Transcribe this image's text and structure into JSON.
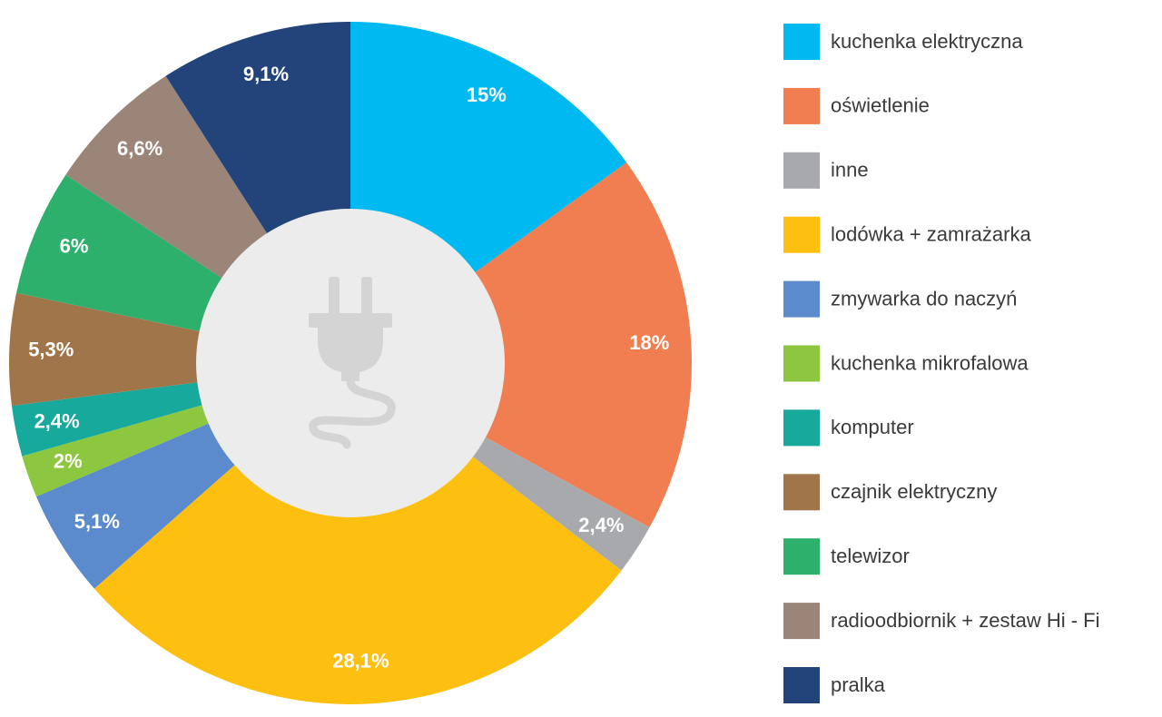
{
  "chart_data": {
    "type": "donut",
    "categories": [
      "kuchenka elektryczna",
      "oświetlenie",
      "inne",
      "lodówka + zamrażarka",
      "zmywarka do naczyń",
      "kuchenka mikrofalowa",
      "komputer",
      "czajnik elektryczny",
      "telewizor",
      "radioodbiornik + zestaw Hi - Fi",
      "pralka"
    ],
    "values": [
      15,
      18,
      2.4,
      28.1,
      5.1,
      2,
      2.4,
      5.3,
      6,
      6.6,
      9.1
    ],
    "value_labels": [
      "15%",
      "18%",
      "2,4%",
      "28,1%",
      "5,1%",
      "2%",
      "2,4%",
      "5,3%",
      "6%",
      "6,6%",
      "9,1%"
    ],
    "colors": [
      "#00b9f1",
      "#f07e50",
      "#a7a9ac",
      "#fdc010",
      "#5b8bcc",
      "#8dc63f",
      "#16a99c",
      "#a0754a",
      "#2eb06d",
      "#9b8579",
      "#22447a"
    ],
    "legend": "right"
  }
}
